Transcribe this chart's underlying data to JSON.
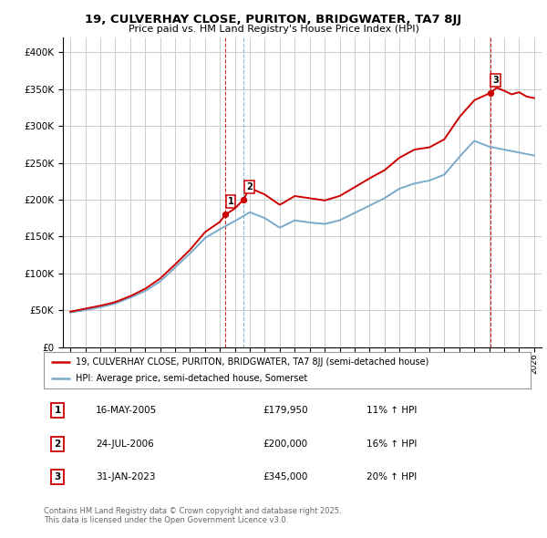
{
  "title": "19, CULVERHAY CLOSE, PURITON, BRIDGWATER, TA7 8JJ",
  "subtitle": "Price paid vs. HM Land Registry's House Price Index (HPI)",
  "legend_line1": "19, CULVERHAY CLOSE, PURITON, BRIDGWATER, TA7 8JJ (semi-detached house)",
  "legend_line2": "HPI: Average price, semi-detached house, Somerset",
  "footer": "Contains HM Land Registry data © Crown copyright and database right 2025.\nThis data is licensed under the Open Government Licence v3.0.",
  "transactions": [
    {
      "num": "1",
      "date": "16-MAY-2005",
      "price": "£179,950",
      "hpi": "11% ↑ HPI",
      "x": 2005.37
    },
    {
      "num": "2",
      "date": "24-JUL-2006",
      "price": "£200,000",
      "hpi": "16% ↑ HPI",
      "x": 2006.56
    },
    {
      "num": "3",
      "date": "31-JAN-2023",
      "price": "£345,000",
      "hpi": "20% ↑ HPI",
      "x": 2023.08
    }
  ],
  "transaction_values": [
    179950,
    200000,
    345000
  ],
  "red_line_color": "#cc0000",
  "blue_line_color": "#7aaacc",
  "vline_color_red": "#cc0000",
  "vline_color_blue": "#7aaacc",
  "grid_color": "#cccccc",
  "background_color": "#ffffff",
  "ylim": [
    0,
    420000
  ],
  "xlim": [
    1994.5,
    2026.5
  ],
  "hpi_years": [
    1995,
    1996,
    1997,
    1998,
    1999,
    2000,
    2001,
    2002,
    2003,
    2004,
    2005,
    2006,
    2007,
    2008,
    2009,
    2010,
    2011,
    2012,
    2013,
    2014,
    2015,
    2016,
    2017,
    2018,
    2019,
    2020,
    2021,
    2022,
    2023,
    2024,
    2025,
    2026
  ],
  "hpi_values": [
    47000,
    50000,
    54000,
    59000,
    67000,
    76000,
    89000,
    108000,
    127000,
    148000,
    160000,
    171000,
    183000,
    175000,
    162000,
    172000,
    169000,
    167000,
    172000,
    182000,
    192000,
    202000,
    215000,
    222000,
    226000,
    234000,
    258000,
    280000,
    272000,
    268000,
    264000,
    260000
  ],
  "red_years": [
    1995,
    1996,
    1997,
    1998,
    1999,
    2000,
    2001,
    2002,
    2003,
    2004,
    2005,
    2005.37,
    2006,
    2006.56,
    2007,
    2008,
    2009,
    2010,
    2011,
    2012,
    2013,
    2014,
    2015,
    2016,
    2017,
    2018,
    2019,
    2020,
    2021,
    2022,
    2023.08,
    2023.5,
    2024,
    2024.5,
    2025,
    2025.5,
    2026
  ],
  "red_values": [
    48000,
    52000,
    56000,
    61000,
    69000,
    79000,
    93000,
    112000,
    132000,
    156000,
    170000,
    179950,
    188000,
    200000,
    216000,
    207000,
    193000,
    205000,
    202000,
    199000,
    205000,
    217000,
    229000,
    240000,
    257000,
    268000,
    271000,
    282000,
    312000,
    335000,
    345000,
    352000,
    348000,
    343000,
    346000,
    340000,
    338000
  ]
}
